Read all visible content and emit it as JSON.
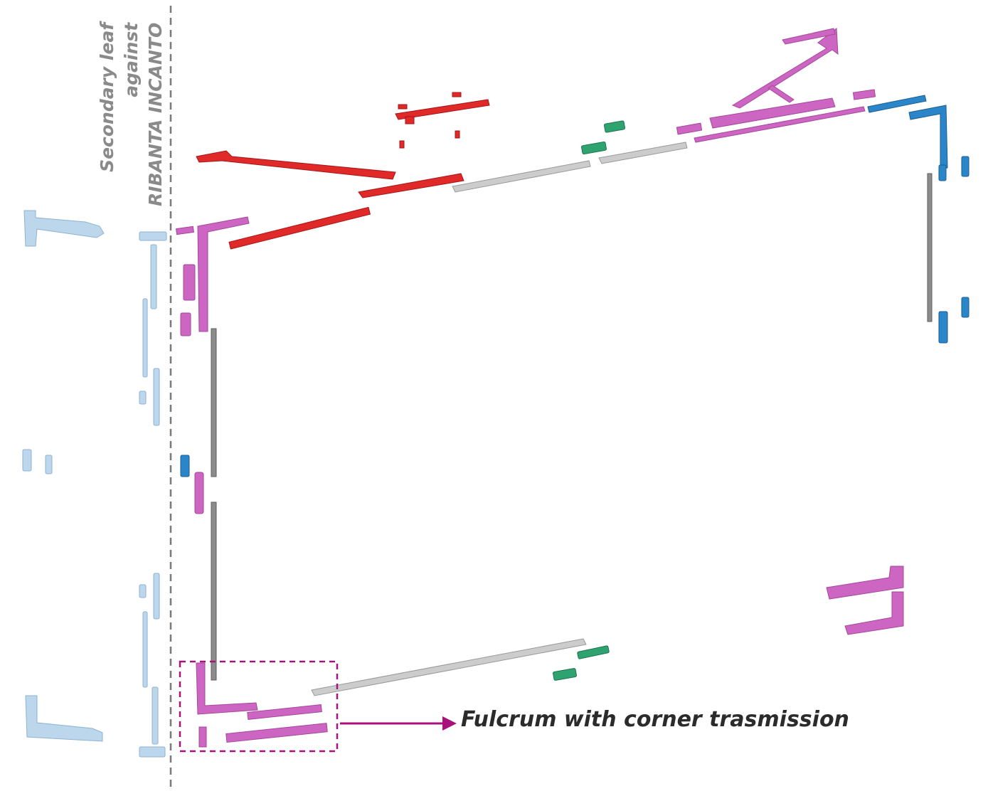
{
  "diagram": {
    "side_label": {
      "lines": [
        "Secondary leaf",
        "against",
        "RIBANTA INCANTO"
      ]
    },
    "callout": {
      "label": "Fulcrum with corner trasmission"
    },
    "colors": {
      "red": "#e02a2a",
      "magenta": "#cc66c2",
      "blue": "#2a86c8",
      "light_blue": "#bcd6ec",
      "green": "#2ea36f",
      "gray": "#bfbfbf",
      "dark_gray": "#6e6e6e",
      "callout": "#a8127a",
      "separator": "#7a7a7a"
    }
  }
}
